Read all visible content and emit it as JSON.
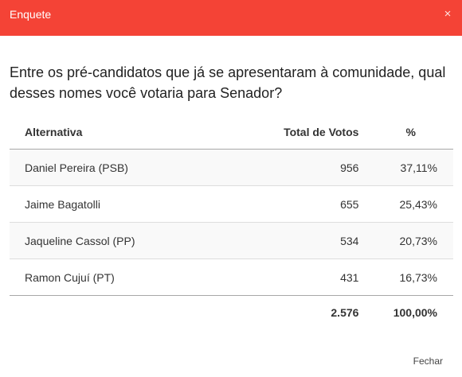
{
  "header": {
    "title": "Enquete",
    "close_symbol": "×",
    "color": "#f44336"
  },
  "question": "Entre os pré-candidatos que já se apresentaram à comunidade, qual desses nomes você votaria para Senador?",
  "table": {
    "columns": {
      "alternative": "Alternativa",
      "votes": "Total de Votos",
      "percent": "%"
    },
    "rows": [
      {
        "name": "Daniel Pereira (PSB)",
        "votes": "956",
        "percent": "37,11%"
      },
      {
        "name": "Jaime Bagatolli",
        "votes": "655",
        "percent": "25,43%"
      },
      {
        "name": "Jaqueline Cassol (PP)",
        "votes": "534",
        "percent": "20,73%"
      },
      {
        "name": "Ramon Cujuí (PT)",
        "votes": "431",
        "percent": "16,73%"
      }
    ],
    "total": {
      "votes": "2.576",
      "percent": "100,00%"
    }
  },
  "footer": {
    "close_label": "Fechar"
  }
}
